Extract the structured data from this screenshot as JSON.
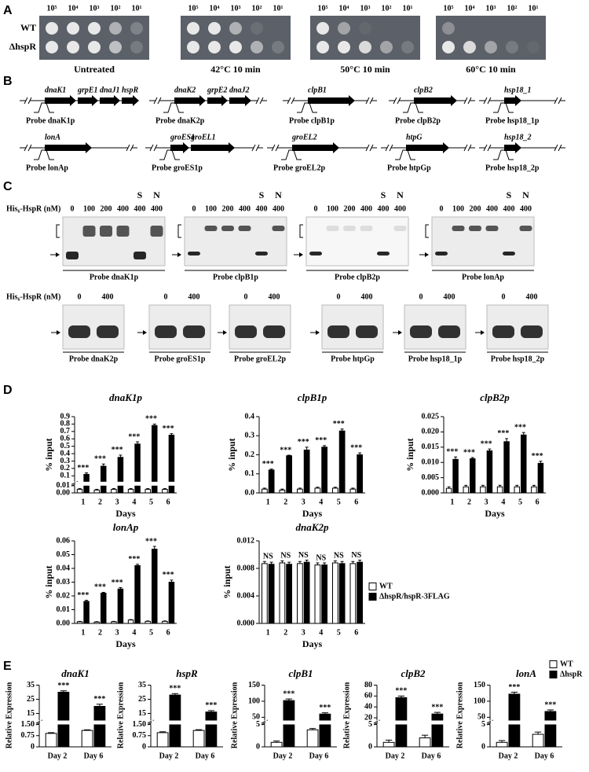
{
  "panel_labels": [
    "A",
    "B",
    "C",
    "D",
    "E"
  ],
  "spot_assay": {
    "strains": [
      "WT",
      "ΔhspR"
    ],
    "plates": [
      {
        "dilutions": [
          "10⁵",
          "10⁴",
          "10³",
          "10²",
          "10¹"
        ],
        "condition": "Untreated"
      },
      {
        "dilutions": [
          "10⁵",
          "10⁴",
          "10³",
          "10²",
          "10¹"
        ],
        "condition": "42°C 10 min"
      },
      {
        "dilutions": [
          "10⁵",
          "10⁴",
          "10³",
          "10²",
          "10¹"
        ],
        "condition": "50°C 10 min"
      },
      {
        "dilutions": [
          "10⁵",
          "10⁴",
          "10³",
          "10²",
          "10¹"
        ],
        "condition": "60°C 10 min"
      }
    ]
  },
  "gene_maps": {
    "rows": [
      [
        {
          "genes": [
            "dnaK1",
            "grpE1",
            "dnaJ1",
            "hspR"
          ],
          "probe": "Probe dnaK1p"
        },
        {
          "genes": [
            "dnaK2",
            "grpE2",
            "dnaJ2"
          ],
          "probe": "Probe dnaK2p"
        },
        {
          "genes": [
            "clpB1"
          ],
          "probe": "Probe clpB1p"
        },
        {
          "genes": [
            "clpB2"
          ],
          "probe": "Probe clpB2p"
        },
        {
          "genes": [
            "hsp18_1"
          ],
          "probe": "Probe hsp18_1p"
        }
      ],
      [
        {
          "genes": [
            "lonA"
          ],
          "probe": "Probe lonAp"
        },
        {
          "genes": [
            "groES1",
            "groEL1"
          ],
          "probe": "Probe groES1p"
        },
        {
          "genes": [
            "groEL2"
          ],
          "probe": "Probe groEL2p"
        },
        {
          "genes": [
            "htpG"
          ],
          "probe": "Probe htpGp"
        },
        {
          "genes": [
            "hsp18_2"
          ],
          "probe": "Probe hsp18_2p"
        }
      ]
    ]
  },
  "emsa": {
    "top": {
      "protein_label": "His₆-HspR (nM)",
      "gels": [
        {
          "lanes": [
            "0",
            "100",
            "200",
            "400",
            "400",
            "400"
          ],
          "tags": [
            "S",
            "N"
          ],
          "probe": "Probe dnaK1p"
        },
        {
          "lanes": [
            "0",
            "100",
            "200",
            "400",
            "400",
            "400"
          ],
          "tags": [
            "S",
            "N"
          ],
          "probe": "Probe clpB1p"
        },
        {
          "lanes": [
            "0",
            "100",
            "200",
            "400",
            "400",
            "400"
          ],
          "tags": [
            "S",
            "N"
          ],
          "probe": "Probe clpB2p"
        },
        {
          "lanes": [
            "0",
            "100",
            "200",
            "400",
            "400",
            "400"
          ],
          "tags": [
            "S",
            "N"
          ],
          "probe": "Probe lonAp"
        }
      ]
    },
    "bottom": {
      "protein_label": "His₆-HspR (nM)",
      "gels": [
        {
          "lanes": [
            "0",
            "400"
          ],
          "probe": "Probe dnaK2p"
        },
        {
          "lanes": [
            "0",
            "400"
          ],
          "probe": "Probe groES1p"
        },
        {
          "lanes": [
            "0",
            "400"
          ],
          "probe": "Probe groEL2p"
        },
        {
          "lanes": [
            "0",
            "400"
          ],
          "probe": "Probe htpGp"
        },
        {
          "lanes": [
            "0",
            "400"
          ],
          "probe": "Probe hsp18_1p"
        },
        {
          "lanes": [
            "0",
            "400"
          ],
          "probe": "Probe hsp18_2p"
        }
      ]
    }
  },
  "chart_data": [
    {
      "type": "bar",
      "title": "dnaK1p",
      "ylabel": "% input",
      "xlabel": "Days",
      "categories": [
        "1",
        "2",
        "3",
        "4",
        "5",
        "6"
      ],
      "segments": [
        {
          "ylim": [
            0,
            0.01
          ],
          "yticks": [
            {
              "value": 0,
              "label": "0.00"
            },
            {
              "value": 0.01,
              "label": "0.01"
            }
          ]
        },
        {
          "ylim": [
            0.02,
            0.9
          ],
          "yticks": [
            0.1,
            0.2,
            0.3,
            0.4,
            0.5,
            0.6,
            0.7,
            0.8,
            0.9
          ]
        }
      ],
      "series": [
        {
          "color": "#ffffff",
          "values": [
            0.005,
            0.004,
            0.005,
            0.005,
            0.005,
            0.005
          ],
          "errors": [
            0.001,
            0.001,
            0.001,
            0.001,
            0.001,
            0.001
          ]
        },
        {
          "color": "#000000",
          "values": [
            0.12,
            0.23,
            0.35,
            0.53,
            0.78,
            0.65
          ],
          "errors": [
            0.02,
            0.03,
            0.03,
            0.03,
            0.02,
            0.02
          ]
        }
      ],
      "annotations": [
        "***",
        "***",
        "***",
        "***",
        "***",
        "***"
      ]
    },
    {
      "type": "bar",
      "title": "clpB1p",
      "ylabel": "% input",
      "xlabel": "Days",
      "categories": [
        "1",
        "2",
        "3",
        "4",
        "5",
        "6"
      ],
      "ylim": [
        0,
        0.4
      ],
      "yticks": [
        {
          "value": 0,
          "label": "0.0"
        },
        0.1,
        0.2,
        0.3,
        0.4
      ],
      "series": [
        {
          "color": "#ffffff",
          "values": [
            0.02,
            0.015,
            0.02,
            0.025,
            0.025,
            0.02
          ],
          "errors": [
            0.005,
            0.005,
            0.005,
            0.005,
            0.005,
            0.005
          ]
        },
        {
          "color": "#000000",
          "values": [
            0.12,
            0.195,
            0.225,
            0.24,
            0.325,
            0.2
          ],
          "errors": [
            0.005,
            0.003,
            0.015,
            0.008,
            0.01,
            0.01
          ]
        }
      ],
      "annotations": [
        "***",
        "***",
        "***",
        "***",
        "***",
        "***"
      ]
    },
    {
      "type": "bar",
      "title": "clpB2p",
      "ylabel": "% input",
      "xlabel": "Days",
      "categories": [
        "1",
        "2",
        "3",
        "4",
        "5",
        "6"
      ],
      "ylim": [
        0,
        0.025
      ],
      "yticks": [
        {
          "value": 0,
          "label": "0.000"
        },
        0.005,
        {
          "value": 0.01,
          "label": "0.010"
        },
        0.015,
        {
          "value": 0.02,
          "label": "0.020"
        },
        0.025
      ],
      "series": [
        {
          "color": "#ffffff",
          "values": [
            0.0015,
            0.002,
            0.002,
            0.002,
            0.002,
            0.002
          ],
          "errors": [
            0.0005,
            0.0005,
            0.0005,
            0.0005,
            0.0005,
            0.0005
          ]
        },
        {
          "color": "#000000",
          "values": [
            0.011,
            0.0112,
            0.0138,
            0.0168,
            0.019,
            0.0097
          ],
          "errors": [
            0.0008,
            0.0004,
            0.0006,
            0.001,
            0.0008,
            0.0007
          ]
        }
      ],
      "annotations": [
        "***",
        "***",
        "***",
        "***",
        "***",
        "***"
      ]
    },
    {
      "type": "bar",
      "title": "lonAp",
      "ylabel": "% input",
      "xlabel": "Days",
      "categories": [
        "1",
        "2",
        "3",
        "4",
        "5",
        "6"
      ],
      "ylim": [
        0,
        0.06
      ],
      "yticks": [
        {
          "value": 0,
          "label": "0.00"
        },
        0.01,
        0.02,
        0.03,
        0.04,
        0.05,
        0.06
      ],
      "series": [
        {
          "color": "#ffffff",
          "values": [
            0.0012,
            0.001,
            0.0012,
            0.0025,
            0.0015,
            0.0015
          ],
          "errors": [
            0.0003,
            0.0003,
            0.0003,
            0.0003,
            0.0003,
            0.0003
          ]
        },
        {
          "color": "#000000",
          "values": [
            0.016,
            0.022,
            0.025,
            0.042,
            0.054,
            0.03
          ],
          "errors": [
            0.0008,
            0.0006,
            0.001,
            0.001,
            0.002,
            0.0015
          ]
        }
      ],
      "annotations": [
        "***",
        "***",
        "***",
        "***",
        "***",
        "***"
      ]
    },
    {
      "type": "bar",
      "title": "dnaK2p",
      "ylabel": "% input",
      "xlabel": "Days",
      "categories": [
        "1",
        "2",
        "3",
        "4",
        "5",
        "6"
      ],
      "ylim": [
        0,
        0.012
      ],
      "yticks": [
        {
          "value": 0,
          "label": "0.000"
        },
        0.004,
        0.008,
        0.012
      ],
      "series": [
        {
          "name": "WT",
          "color": "#ffffff",
          "values": [
            0.0087,
            0.0088,
            0.0087,
            0.0085,
            0.0088,
            0.0087
          ],
          "errors": [
            0.0003,
            0.0003,
            0.0003,
            0.0003,
            0.0003,
            0.0003
          ]
        },
        {
          "name": "ΔhspR/hspR-3FLAG",
          "color": "#000000",
          "values": [
            0.0086,
            0.0086,
            0.0089,
            0.0085,
            0.0087,
            0.0089
          ],
          "errors": [
            0.0003,
            0.0003,
            0.0003,
            0.0003,
            0.0003,
            0.0003
          ]
        }
      ],
      "annotations": [
        "NS",
        "NS",
        "NS",
        "NS",
        "NS",
        "NS"
      ]
    },
    {
      "type": "bar",
      "title": "dnaK1",
      "ylabel": "Relative Expression",
      "categories": [
        "Day 2",
        "Day 6"
      ],
      "segments": [
        {
          "ylim": [
            0,
            1.5
          ],
          "yticks": [
            0,
            0.75,
            {
              "value": 1.5,
              "label": "1.50"
            }
          ]
        },
        {
          "ylim": [
            10,
            35
          ],
          "yticks": [
            15,
            25,
            35
          ]
        }
      ],
      "series": [
        {
          "color": "#ffffff",
          "values": [
            0.9,
            1.1
          ],
          "errors": [
            0.05,
            0.04
          ]
        },
        {
          "color": "#000000",
          "values": [
            30,
            20
          ],
          "errors": [
            1,
            1.5
          ]
        }
      ],
      "annotations": [
        "***",
        "***"
      ]
    },
    {
      "type": "bar",
      "title": "hspR",
      "ylabel": "Relative Expression",
      "categories": [
        "Day 2",
        "Day 6"
      ],
      "segments": [
        {
          "ylim": [
            0,
            1.5
          ],
          "yticks": [
            0,
            0.75,
            {
              "value": 1.5,
              "label": "1.50"
            }
          ]
        },
        {
          "ylim": [
            10,
            35
          ],
          "yticks": [
            15,
            25,
            35
          ]
        }
      ],
      "series": [
        {
          "color": "#ffffff",
          "values": [
            0.95,
            1.1
          ],
          "errors": [
            0.06,
            0.05
          ]
        },
        {
          "color": "#000000",
          "values": [
            28,
            16
          ],
          "errors": [
            1,
            1
          ]
        }
      ],
      "annotations": [
        "***",
        "***"
      ]
    },
    {
      "type": "bar",
      "title": "clpB1",
      "ylabel": "Relative Expression",
      "categories": [
        "Day 2",
        "Day 6"
      ],
      "segments": [
        {
          "ylim": [
            0,
            5
          ],
          "yticks": [
            0,
            5
          ]
        },
        {
          "ylim": [
            40,
            150
          ],
          "yticks": [
            50,
            100,
            150
          ]
        }
      ],
      "series": [
        {
          "color": "#ffffff",
          "values": [
            1,
            3.8
          ],
          "errors": [
            0.3,
            0.3
          ]
        },
        {
          "color": "#000000",
          "values": [
            102,
            60
          ],
          "errors": [
            5,
            4
          ]
        }
      ],
      "annotations": [
        "***",
        "***"
      ]
    },
    {
      "type": "bar",
      "title": "clpB2",
      "ylabel": "Relative Expression",
      "categories": [
        "Day 2",
        "Day 6"
      ],
      "segments": [
        {
          "ylim": [
            0,
            5
          ],
          "yticks": [
            0,
            5
          ]
        },
        {
          "ylim": [
            15,
            80
          ],
          "yticks": [
            20,
            40,
            60,
            80
          ]
        }
      ],
      "series": [
        {
          "color": "#ffffff",
          "values": [
            1,
            2
          ],
          "errors": [
            0.5,
            0.6
          ]
        },
        {
          "color": "#000000",
          "values": [
            57,
            27
          ],
          "errors": [
            3,
            3
          ]
        }
      ],
      "annotations": [
        "***",
        "***"
      ]
    },
    {
      "type": "bar",
      "title": "lonA",
      "ylabel": "Relative Expression",
      "categories": [
        "Day 2",
        "Day 6"
      ],
      "segments": [
        {
          "ylim": [
            0,
            5
          ],
          "yticks": [
            0,
            5
          ]
        },
        {
          "ylim": [
            40,
            150
          ],
          "yticks": [
            50,
            100,
            150
          ]
        }
      ],
      "series": [
        {
          "name": "WT",
          "color": "#ffffff",
          "values": [
            1,
            2.8
          ],
          "errors": [
            0.4,
            0.5
          ]
        },
        {
          "name": "ΔhspR",
          "color": "#000000",
          "values": [
            122,
            68
          ],
          "errors": [
            6,
            5
          ]
        }
      ],
      "annotations": [
        "***",
        "***"
      ]
    }
  ]
}
